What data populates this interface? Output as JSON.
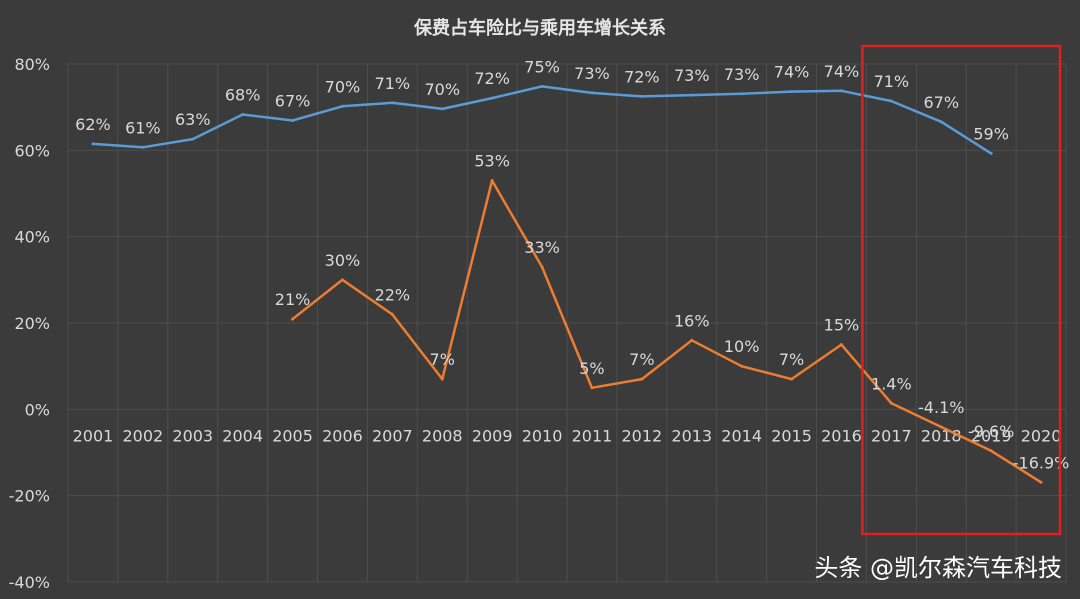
{
  "chart_data": {
    "type": "line",
    "title": "保费占车险比与乘用车增长关系",
    "categories": [
      "2001",
      "2002",
      "2003",
      "2004",
      "2005",
      "2006",
      "2007",
      "2008",
      "2009",
      "2010",
      "2011",
      "2012",
      "2013",
      "2014",
      "2015",
      "2016",
      "2017",
      "2018",
      "2019",
      "2020"
    ],
    "ylim": [
      -40,
      80
    ],
    "y_ticks": [
      80,
      60,
      40,
      20,
      0,
      -20,
      -40
    ],
    "y_tick_labels": [
      "80%",
      "60%",
      "40%",
      "20%",
      "0%",
      "-20%",
      "-40%"
    ],
    "grid": true,
    "legend": "none",
    "series": [
      {
        "color": "#5b9bd5",
        "values": [
          61.5,
          60.7,
          62.6,
          68.3,
          66.9,
          70.2,
          71.0,
          69.6,
          72.1,
          74.8,
          73.3,
          72.5,
          72.8,
          73.1,
          73.6,
          73.8,
          71.4,
          66.6,
          59.3,
          null
        ],
        "labels": [
          "62%",
          "61%",
          "63%",
          "68%",
          "67%",
          "70%",
          "71%",
          "70%",
          "72%",
          "75%",
          "73%",
          "72%",
          "73%",
          "73%",
          "74%",
          "74%",
          "71%",
          "67%",
          "59%",
          null
        ]
      },
      {
        "color": "#ed7d31",
        "values": [
          null,
          null,
          null,
          null,
          20.9,
          30.0,
          22.0,
          7.0,
          53.0,
          33.0,
          5.0,
          7.0,
          16.0,
          10.0,
          7.0,
          15.0,
          1.4,
          -4.1,
          -9.6,
          -16.9
        ],
        "labels": [
          null,
          null,
          null,
          null,
          "21%",
          "30%",
          "22%",
          "7%",
          "53%",
          "33%",
          "5%",
          "7%",
          "16%",
          "10%",
          "7%",
          "15%",
          "1.4%",
          "-4.1%",
          "-9.6%",
          "-16.9%"
        ]
      }
    ],
    "annotation": {
      "type": "highlight-box",
      "from_category": "2017",
      "to_category": "2020",
      "color": "#e02020"
    }
  },
  "watermark": "头条 @凯尔森汽车科技"
}
